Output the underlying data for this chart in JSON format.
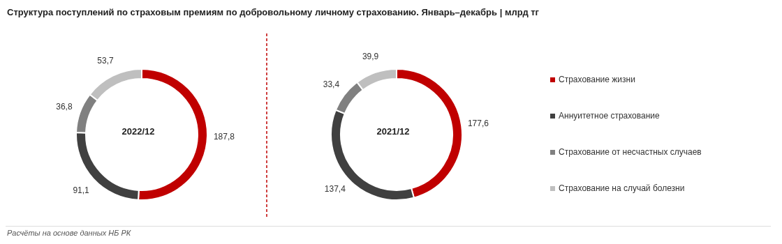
{
  "chart_data": [
    {
      "type": "donut",
      "title": "Структура поступлений по страховым премиям по добровольному личному страхованию. Январь–декабрь | млрд тг",
      "subtitle": "2022/12",
      "categories": [
        "Страхование жизни",
        "Аннуитетное страхование",
        "Страхование от несчастных случаев",
        "Страхование на случай болезни"
      ],
      "values": [
        187.8,
        91.1,
        36.8,
        53.7
      ],
      "value_labels": [
        "187,8",
        "91,1",
        "36,8",
        "53,7"
      ],
      "colors": [
        "#c00000",
        "#404040",
        "#808080",
        "#bfbfbf"
      ],
      "annotations": [
        "Расчёты на основе данных НБ РК"
      ],
      "legend": "right"
    },
    {
      "type": "donut",
      "subtitle": "2021/12",
      "categories": [
        null,
        null,
        null,
        null
      ],
      "values": [
        177.6,
        137.4,
        33.4,
        39.9
      ],
      "value_labels": [
        "177,6",
        "137,4",
        "33,4",
        "39,9"
      ],
      "colors": [
        "#c00000",
        "#404040",
        "#808080",
        "#bfbfbf"
      ]
    }
  ]
}
